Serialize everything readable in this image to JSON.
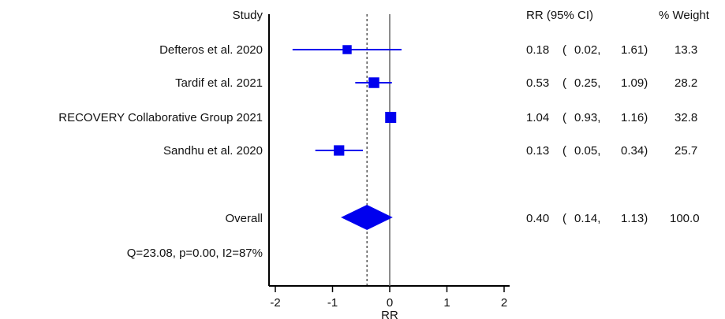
{
  "chart_data": {
    "type": "forest",
    "header": {
      "study": "Study",
      "effect": "RR (95% CI)",
      "weight": "% Weight"
    },
    "studies": [
      {
        "label": "Defteros et al. 2020",
        "rr": 0.18,
        "lower": 0.02,
        "upper": 1.61,
        "weight": 13.3,
        "rr_text": "0.18",
        "lower_text": "0.02,",
        "upper_text": "1.61)",
        "weight_text": "13.3"
      },
      {
        "label": "Tardif et al. 2021",
        "rr": 0.53,
        "lower": 0.25,
        "upper": 1.09,
        "weight": 28.2,
        "rr_text": "0.53",
        "lower_text": "0.25,",
        "upper_text": "1.09)",
        "weight_text": "28.2"
      },
      {
        "label": "RECOVERY Collaborative Group 2021",
        "rr": 1.04,
        "lower": 0.93,
        "upper": 1.16,
        "weight": 32.8,
        "rr_text": "1.04",
        "lower_text": "0.93,",
        "upper_text": "1.16)",
        "weight_text": "32.8"
      },
      {
        "label": "Sandhu et al. 2020",
        "rr": 0.13,
        "lower": 0.05,
        "upper": 0.34,
        "weight": 25.7,
        "rr_text": "0.13",
        "lower_text": "0.05,",
        "upper_text": "0.34)",
        "weight_text": "25.7"
      }
    ],
    "overall": {
      "label": "Overall",
      "rr": 0.4,
      "lower": 0.14,
      "upper": 1.13,
      "rr_text": "0.40",
      "lower_text": "0.14,",
      "upper_text": "1.13)",
      "weight_text": "100.0"
    },
    "heterogeneity": "Q=23.08, p=0.00, I2=87%",
    "x_axis": {
      "label": "RR",
      "scale": "log",
      "ticks": [
        {
          "value": 0.01,
          "label": "-2"
        },
        {
          "value": 0.1,
          "label": "-1"
        },
        {
          "value": 1,
          "label": "0"
        },
        {
          "value": 10,
          "label": "1"
        },
        {
          "value": 100,
          "label": "2"
        }
      ],
      "reference_line": 1
    },
    "colors": {
      "marker": "#0000ee",
      "ci_line": "#0000ee",
      "reference": "#666666",
      "axis": "#000000"
    }
  }
}
